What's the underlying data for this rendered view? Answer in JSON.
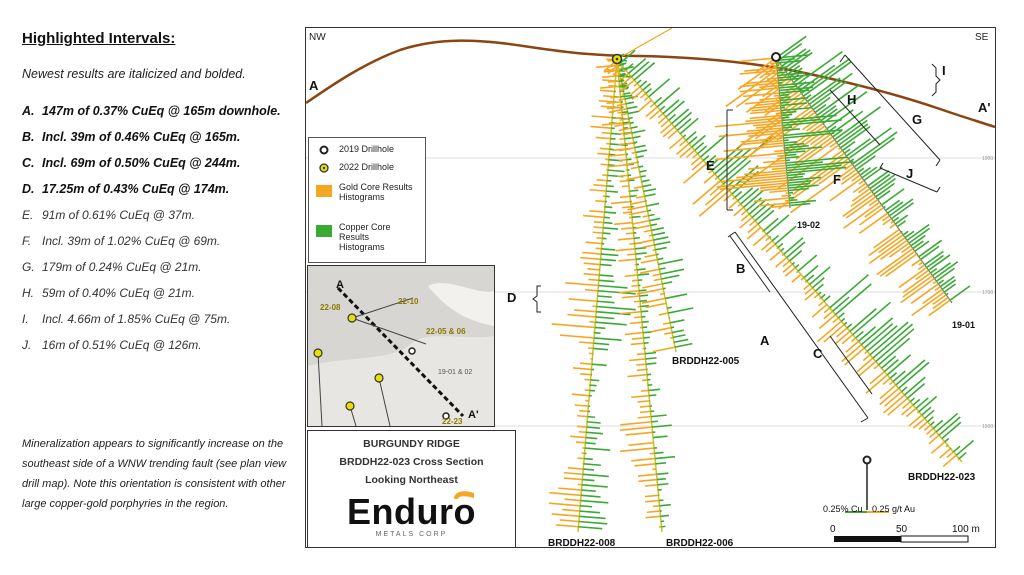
{
  "highlights": {
    "title": "Highlighted Intervals:",
    "subtitle": "Newest results are italicized and bolded.",
    "intervals": [
      {
        "letter": "A.",
        "text": "147m of 0.37% CuEq @ 165m downhole.",
        "is_new": true
      },
      {
        "letter": "B.",
        "text": "Incl. 39m of 0.46% CuEq @ 165m.",
        "is_new": true
      },
      {
        "letter": "C.",
        "text": "Incl. 69m of 0.50% CuEq @ 244m.",
        "is_new": true
      },
      {
        "letter": "D.",
        "text": "17.25m of 0.43% CuEq @ 174m.",
        "is_new": true
      },
      {
        "letter": "E.",
        "text": "91m of 0.61% CuEq @ 37m.",
        "is_new": false
      },
      {
        "letter": "F.",
        "text": "Incl. 39m of 1.02% CuEq @ 69m.",
        "is_new": false
      },
      {
        "letter": "G.",
        "text": "179m of 0.24% CuEq @ 21m.",
        "is_new": false
      },
      {
        "letter": "H.",
        "text": "59m of 0.40% CuEq @ 21m.",
        "is_new": false
      },
      {
        "letter": "I.",
        "text": "Incl. 4.66m of 1.85% CuEq @ 75m.",
        "is_new": false
      },
      {
        "letter": "J.",
        "text": "16m of 0.51% CuEq @ 126m.",
        "is_new": false
      }
    ],
    "note": "Mineralization appears to significantly increase on the southeast side of a WNW trending fault (see plan view drill map). Note this orientation is consistent with other large copper-gold porphyries in the region."
  },
  "section": {
    "nw_label": "NW",
    "se_label": "SE",
    "a_label": "A",
    "a_prime_label": "A'",
    "interval_labels": [
      "A",
      "B",
      "C",
      "D",
      "E",
      "F",
      "G",
      "H",
      "I",
      "J"
    ],
    "holes": {
      "h008": "BRDDH22-008",
      "h006": "BRDDH22-006",
      "h005": "BRDDH22-005",
      "h023": "BRDDH22-023",
      "h1901": "19-01",
      "h1902": "19-02"
    },
    "legend": {
      "drill_2019": "2019 Drillhole",
      "drill_2022": "2022 Drillhole",
      "gold": "Gold Core Results Histograms",
      "copper": "Copper Core Results Histograms"
    },
    "inset": {
      "a_label": "A",
      "a_prime_label": "A'",
      "labels": [
        "22-08",
        "22-10",
        "22-05 & 06",
        "19-01 & 02",
        "22-23"
      ]
    },
    "title_lines": [
      "BURGUNDY RIDGE",
      "BRDDH22-023 Cross Section",
      "Looking Northeast"
    ],
    "logo": {
      "word": "Enduro",
      "sub": "METALS CORP"
    },
    "scale": {
      "cu": "0.25% Cu",
      "au": "0.25 g/t Au",
      "ticks": [
        "0",
        "50",
        "100 m"
      ]
    },
    "elevation_labels": [
      "1900 RL",
      "1700 RL",
      "1500 RL"
    ]
  },
  "colors": {
    "gold": "#f5a623",
    "copper": "#3aaa35",
    "topo": "#8b4513",
    "drill_2022": "#e8e000"
  }
}
